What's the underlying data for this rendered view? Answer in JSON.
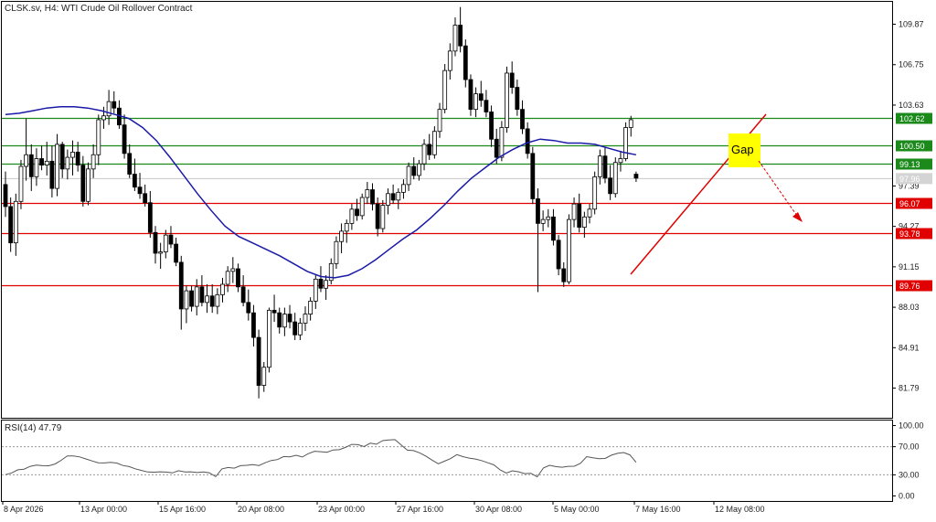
{
  "header": {
    "symbol": "CLSK.sv, H4:",
    "description": "WTI Crude Oil Rollover Contract"
  },
  "chart_data": [
    {
      "type": "candlestick",
      "title": "CLSK.sv, H4:  WTI Crude Oil Rollover Contract",
      "y_ticks": [
        "109.87",
        "106.75",
        "103.63",
        "97.39",
        "94.27",
        "91.15",
        "88.03",
        "84.91",
        "81.79"
      ],
      "ylim": [
        79.5,
        111.6
      ],
      "x_ticks": [
        "8 Apr 2026",
        "13 Apr 00:00",
        "15 Apr 16:00",
        "20 Apr 08:00",
        "23 Apr 00:00",
        "27 Apr 16:00",
        "30 Apr 08:00",
        "5 May 00:00",
        "7 May 16:00",
        "12 May 08:00"
      ],
      "levels": [
        {
          "value": 102.62,
          "label": "102.62",
          "color": "#1b8a1b"
        },
        {
          "value": 100.5,
          "label": "100.50",
          "color": "#1b8a1b"
        },
        {
          "value": 99.13,
          "label": "99.13",
          "color": "#1b8a1b"
        },
        {
          "value": 96.07,
          "label": "96.07",
          "color": "#e00000"
        },
        {
          "value": 93.78,
          "label": "93.78",
          "color": "#e00000"
        },
        {
          "value": 89.76,
          "label": "89.76",
          "color": "#e00000"
        }
      ],
      "current_price": {
        "value": 97.96,
        "label": "97.96"
      },
      "annotation": {
        "text": "Gap",
        "fill": "#ffff00"
      },
      "ma_color": "#1a1aa8",
      "ma": [
        102.9,
        103.0,
        103.2,
        103.4,
        103.5,
        103.5,
        103.4,
        103.2,
        102.9,
        102.6,
        101.9,
        100.9,
        99.6,
        98.2,
        96.8,
        95.5,
        94.3,
        93.5,
        93.0,
        92.5,
        92.0,
        91.4,
        90.8,
        90.4,
        90.3,
        90.5,
        91.0,
        91.7,
        92.5,
        93.3,
        94.0,
        94.9,
        95.9,
        97.0,
        98.0,
        98.8,
        99.6,
        100.2,
        100.7,
        101.0,
        100.9,
        100.7,
        100.7,
        100.6,
        100.3,
        100.0,
        99.8
      ],
      "ohlc": [
        [
          97.5,
          98.5,
          95.0,
          95.8
        ],
        [
          95.8,
          96.5,
          92.3,
          93.0
        ],
        [
          93.0,
          96.8,
          92.0,
          96.2
        ],
        [
          96.2,
          99.4,
          95.6,
          98.9
        ],
        [
          98.9,
          102.6,
          97.8,
          99.8
        ],
        [
          99.8,
          100.6,
          97.0,
          98.1
        ],
        [
          98.1,
          100.3,
          97.4,
          99.5
        ],
        [
          99.5,
          100.5,
          98.6,
          99.0
        ],
        [
          99.0,
          100.8,
          98.2,
          99.3
        ],
        [
          99.3,
          100.5,
          96.5,
          97.2
        ],
        [
          97.2,
          101.4,
          96.6,
          100.6
        ],
        [
          100.6,
          100.8,
          98.0,
          98.7
        ],
        [
          98.7,
          100.2,
          97.9,
          99.6
        ],
        [
          99.6,
          100.9,
          98.2,
          100.0
        ],
        [
          100.0,
          100.8,
          98.5,
          99.0
        ],
        [
          99.0,
          99.7,
          95.8,
          96.2
        ],
        [
          96.2,
          99.2,
          95.9,
          98.7
        ],
        [
          98.7,
          100.6,
          98.0,
          99.8
        ],
        [
          99.8,
          102.9,
          99.0,
          102.5
        ],
        [
          102.5,
          103.5,
          101.8,
          102.8
        ],
        [
          102.8,
          104.8,
          102.1,
          103.9
        ],
        [
          103.9,
          104.7,
          103.0,
          103.4
        ],
        [
          103.4,
          104.0,
          101.8,
          102.1
        ],
        [
          102.1,
          102.9,
          99.5,
          99.9
        ],
        [
          99.9,
          100.6,
          98.0,
          98.3
        ],
        [
          98.3,
          99.5,
          97.0,
          97.3
        ],
        [
          97.3,
          98.4,
          96.4,
          96.8
        ],
        [
          96.8,
          97.5,
          95.8,
          96.1
        ],
        [
          96.1,
          97.0,
          93.4,
          93.8
        ],
        [
          93.8,
          94.3,
          91.4,
          92.2
        ],
        [
          92.2,
          93.0,
          91.0,
          92.3
        ],
        [
          92.3,
          94.0,
          91.8,
          93.6
        ],
        [
          93.6,
          94.3,
          92.6,
          92.9
        ],
        [
          92.9,
          93.4,
          91.2,
          91.5
        ],
        [
          91.5,
          92.0,
          86.3,
          87.9
        ],
        [
          87.9,
          89.7,
          86.8,
          89.3
        ],
        [
          89.3,
          89.7,
          87.7,
          88.1
        ],
        [
          88.1,
          90.2,
          87.4,
          89.6
        ],
        [
          89.6,
          90.5,
          88.1,
          88.4
        ],
        [
          88.4,
          89.8,
          87.6,
          88.9
        ],
        [
          88.9,
          89.8,
          87.6,
          88.1
        ],
        [
          88.1,
          89.5,
          87.5,
          89.0
        ],
        [
          89.0,
          90.3,
          88.4,
          89.8
        ],
        [
          89.8,
          91.2,
          89.2,
          90.8
        ],
        [
          90.8,
          91.9,
          89.9,
          91.0
        ],
        [
          91.0,
          91.4,
          89.2,
          89.6
        ],
        [
          89.6,
          90.5,
          88.1,
          88.4
        ],
        [
          88.4,
          89.4,
          87.0,
          87.6
        ],
        [
          87.6,
          88.2,
          85.0,
          85.7
        ],
        [
          85.7,
          86.3,
          81.0,
          82.0
        ],
        [
          82.0,
          83.8,
          81.5,
          83.4
        ],
        [
          83.4,
          88.0,
          83.0,
          87.8
        ],
        [
          87.8,
          89.0,
          86.9,
          87.6
        ],
        [
          87.6,
          88.0,
          86.0,
          86.5
        ],
        [
          86.5,
          88.0,
          85.8,
          87.5
        ],
        [
          87.5,
          88.2,
          86.4,
          86.9
        ],
        [
          86.9,
          87.6,
          85.5,
          85.9
        ],
        [
          85.9,
          87.2,
          85.5,
          86.8
        ],
        [
          86.8,
          88.1,
          86.2,
          87.5
        ],
        [
          87.5,
          88.8,
          87.0,
          88.5
        ],
        [
          88.5,
          90.5,
          87.9,
          90.2
        ],
        [
          90.2,
          91.2,
          89.2,
          89.5
        ],
        [
          89.5,
          90.5,
          88.6,
          90.1
        ],
        [
          90.1,
          91.8,
          89.8,
          91.4
        ],
        [
          91.4,
          93.5,
          91.0,
          93.1
        ],
        [
          93.1,
          94.5,
          92.2,
          93.9
        ],
        [
          93.9,
          94.8,
          93.0,
          94.5
        ],
        [
          94.5,
          96.0,
          94.0,
          95.6
        ],
        [
          95.6,
          96.4,
          94.7,
          95.1
        ],
        [
          95.1,
          96.8,
          94.8,
          96.5
        ],
        [
          96.5,
          97.7,
          96.0,
          97.1
        ],
        [
          97.1,
          97.6,
          95.5,
          96.0
        ],
        [
          96.0,
          96.5,
          93.5,
          94.1
        ],
        [
          94.1,
          96.3,
          93.8,
          95.9
        ],
        [
          95.9,
          97.2,
          95.2,
          96.8
        ],
        [
          96.8,
          97.5,
          96.0,
          96.3
        ],
        [
          96.3,
          97.2,
          95.6,
          96.9
        ],
        [
          96.9,
          97.9,
          96.4,
          97.5
        ],
        [
          97.5,
          99.2,
          97.0,
          98.9
        ],
        [
          98.9,
          99.6,
          97.9,
          98.2
        ],
        [
          98.2,
          99.4,
          97.8,
          99.1
        ],
        [
          99.1,
          101.0,
          98.6,
          100.6
        ],
        [
          100.6,
          101.4,
          99.4,
          99.8
        ],
        [
          99.8,
          102.0,
          99.5,
          101.6
        ],
        [
          101.6,
          103.8,
          101.1,
          103.3
        ],
        [
          103.3,
          106.8,
          103.0,
          106.3
        ],
        [
          106.3,
          108.4,
          105.6,
          107.8
        ],
        [
          107.8,
          110.4,
          107.4,
          109.8
        ],
        [
          109.8,
          111.2,
          107.7,
          108.2
        ],
        [
          108.2,
          108.7,
          105.0,
          105.6
        ],
        [
          105.6,
          106.0,
          102.8,
          103.3
        ],
        [
          103.3,
          105.0,
          102.7,
          104.5
        ],
        [
          104.5,
          105.5,
          103.5,
          104.0
        ],
        [
          104.0,
          104.8,
          102.7,
          103.1
        ],
        [
          103.1,
          103.6,
          100.4,
          101.0
        ],
        [
          101.0,
          101.8,
          99.1,
          99.6
        ],
        [
          99.6,
          102.4,
          99.3,
          101.9
        ],
        [
          101.9,
          106.6,
          101.5,
          106.1
        ],
        [
          106.1,
          107.0,
          104.5,
          105.0
        ],
        [
          105.0,
          105.6,
          102.8,
          103.3
        ],
        [
          103.3,
          104.0,
          101.4,
          101.8
        ],
        [
          101.8,
          102.3,
          99.5,
          99.9
        ],
        [
          99.9,
          100.4,
          96.0,
          96.4
        ],
        [
          96.4,
          97.2,
          89.2,
          94.5
        ],
        [
          94.5,
          95.5,
          93.9,
          94.8
        ],
        [
          94.8,
          95.6,
          94.2,
          95.0
        ],
        [
          95.0,
          95.6,
          92.8,
          93.2
        ],
        [
          93.2,
          93.6,
          90.5,
          91.0
        ],
        [
          91.0,
          91.5,
          89.6,
          90.0
        ],
        [
          90.0,
          95.2,
          89.8,
          94.8
        ],
        [
          94.8,
          96.5,
          94.2,
          96.0
        ],
        [
          96.0,
          96.8,
          93.8,
          94.2
        ],
        [
          94.2,
          95.4,
          93.4,
          95.0
        ],
        [
          95.0,
          96.0,
          94.5,
          95.6
        ],
        [
          95.6,
          98.5,
          95.2,
          98.1
        ],
        [
          98.1,
          100.2,
          97.5,
          99.7
        ],
        [
          99.7,
          100.4,
          97.6,
          98.0
        ],
        [
          98.0,
          99.0,
          96.3,
          96.8
        ],
        [
          96.8,
          99.6,
          96.5,
          99.2
        ],
        [
          99.2,
          100.1,
          98.5,
          99.5
        ],
        [
          99.5,
          102.3,
          99.3,
          101.9
        ],
        [
          101.9,
          102.8,
          101.2,
          102.5
        ],
        [
          98.3,
          98.5,
          97.7,
          98.0
        ]
      ]
    },
    {
      "type": "line",
      "title": "RSI(14) 47.79",
      "y_ticks": [
        "100.00",
        "70.00",
        "30.00",
        "0.00"
      ],
      "ylim": [
        0,
        100
      ],
      "levels": [
        70,
        30
      ],
      "values": [
        30.3,
        32.7,
        37.1,
        38.1,
        42.1,
        43.9,
        43.0,
        42.9,
        45.3,
        50.7,
        56.9,
        56.9,
        55.5,
        52.6,
        49.8,
        47.2,
        46.9,
        47.6,
        46.8,
        43.2,
        41.7,
        38.6,
        36.2,
        34.0,
        33.8,
        34.3,
        33.9,
        32.7,
        35.9,
        34.2,
        34.3,
        33.3,
        34.1,
        32.9,
        27.4,
        38.4,
        40.4,
        39.5,
        43.0,
        43.5,
        44.6,
        43.2,
        47.2,
        50.4,
        51.7,
        56.0,
        55.6,
        57.8,
        55.3,
        60.1,
        63.5,
        62.8,
        62.1,
        65.3,
        65.7,
        69.0,
        73.2,
        72.9,
        70.1,
        75.0,
        73.5,
        78.6,
        79.5,
        80.0,
        72.3,
        65.1,
        64.4,
        61.2,
        56.6,
        50.9,
        45.7,
        49.3,
        53.1,
        58.7,
        55.8,
        53.8,
        52.5,
        50.3,
        47.1,
        44.1,
        37.0,
        32.5,
        35.7,
        34.3,
        31.7,
        32.2,
        27.2,
        39.7,
        43.5,
        41.7,
        40.8,
        42.1,
        42.2,
        46.3,
        55.9,
        54.2,
        52.8,
        53.2,
        57.9,
        60.5,
        61.7,
        58.3,
        47.8
      ]
    }
  ]
}
